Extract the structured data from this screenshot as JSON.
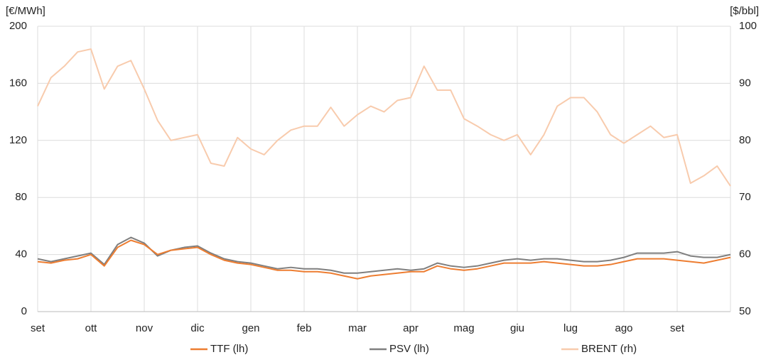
{
  "chart_data": {
    "type": "line",
    "y_label": "[€/MWh]",
    "y2_label": "[$/bbl]",
    "categories": [
      "set",
      null,
      null,
      null,
      "ott",
      null,
      null,
      null,
      "nov",
      null,
      null,
      null,
      "dic",
      null,
      null,
      null,
      "gen",
      null,
      null,
      null,
      "feb",
      null,
      null,
      null,
      "mar",
      null,
      null,
      null,
      "apr",
      null,
      null,
      null,
      "mag",
      null,
      null,
      null,
      "giu",
      null,
      null,
      null,
      "lug",
      null,
      null,
      null,
      "ago",
      null,
      null,
      null,
      "set",
      null,
      null,
      null,
      null
    ],
    "series": [
      {
        "name": "TTF (lh)",
        "color": "#ed7d31",
        "axis": "y",
        "values": [
          35,
          34,
          36,
          37,
          40,
          32,
          45,
          50,
          47,
          40,
          43,
          44,
          45,
          40,
          36,
          34,
          33,
          31,
          29,
          29,
          28,
          28,
          27,
          25,
          23,
          25,
          26,
          27,
          28,
          28,
          32,
          30,
          29,
          30,
          32,
          34,
          34,
          34,
          35,
          34,
          33,
          32,
          32,
          33,
          35,
          37,
          37,
          37,
          36,
          35,
          34,
          36,
          38
        ]
      },
      {
        "name": "PSV (lh)",
        "color": "#7f7f7f",
        "axis": "y",
        "values": [
          37,
          35,
          37,
          39,
          41,
          33,
          47,
          52,
          48,
          39,
          43,
          45,
          46,
          41,
          37,
          35,
          34,
          32,
          30,
          31,
          30,
          30,
          29,
          27,
          27,
          28,
          29,
          30,
          29,
          30,
          34,
          32,
          31,
          32,
          34,
          36,
          37,
          36,
          37,
          37,
          36,
          35,
          35,
          36,
          38,
          41,
          41,
          41,
          42,
          39,
          38,
          38,
          40
        ]
      },
      {
        "name": "BRENT (rh)",
        "color": "#f8cbad",
        "axis": "y2",
        "values": [
          86,
          91,
          93,
          95.5,
          96,
          89,
          93,
          94,
          89,
          83.5,
          80,
          80.5,
          81,
          76,
          75.5,
          80.5,
          78.5,
          77.5,
          80,
          81.8,
          82.5,
          82.5,
          85.8,
          82.5,
          84.5,
          86,
          85,
          87,
          87.5,
          93,
          88.8,
          88.8,
          83.8,
          82.5,
          81,
          80,
          81,
          77.5,
          81,
          86,
          87.5,
          87.5,
          85,
          81,
          79.5,
          81,
          82.5,
          80.5,
          81,
          72.5,
          73.8,
          75.5,
          72
        ]
      }
    ],
    "ylim": [
      0,
      200
    ],
    "yticks": [
      0,
      40,
      80,
      120,
      160,
      200
    ],
    "y2lim": [
      50,
      100
    ],
    "y2ticks": [
      50,
      60,
      70,
      80,
      90,
      100
    ],
    "grid": true,
    "legend": "bottom"
  }
}
